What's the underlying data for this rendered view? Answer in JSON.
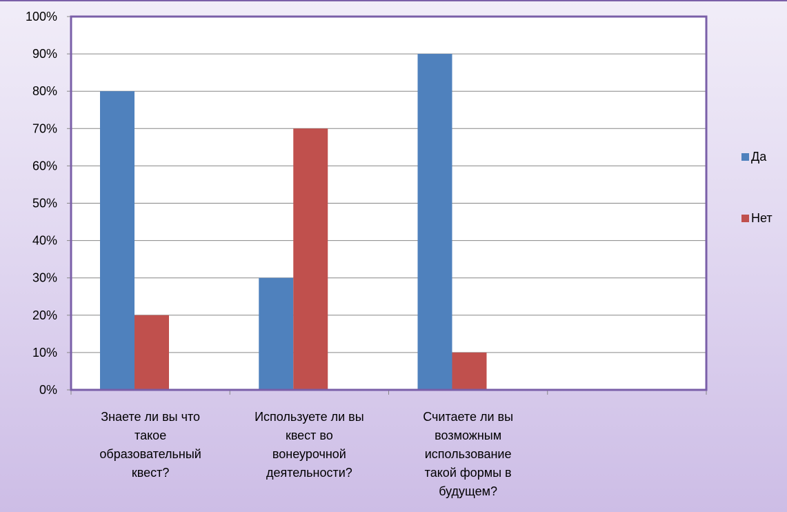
{
  "chart_data": {
    "type": "bar",
    "categories": [
      [
        "Знаете ли вы что",
        "такое",
        "образовательный",
        "квест?"
      ],
      [
        "Используете ли вы",
        "квест во",
        "вонеурочной",
        "деятельности?"
      ],
      [
        "Считаете ли вы",
        "возможным",
        "использование",
        "такой формы в",
        "будущем?"
      ],
      [
        ""
      ]
    ],
    "series": [
      {
        "name": "Да",
        "values": [
          80,
          30,
          90,
          null
        ],
        "color": "#4f81bd"
      },
      {
        "name": "Нет",
        "values": [
          20,
          70,
          10,
          null
        ],
        "color": "#c0504d"
      }
    ],
    "ylim": [
      0,
      100
    ],
    "yticks": [
      0,
      10,
      20,
      30,
      40,
      50,
      60,
      70,
      80,
      90,
      100
    ],
    "ytick_format": "percent",
    "grid": true,
    "legend_position": "right",
    "title": "",
    "xlabel": "",
    "ylabel": "",
    "plot_border_color": "#7a5fa8",
    "gridline_color": "#868686"
  }
}
